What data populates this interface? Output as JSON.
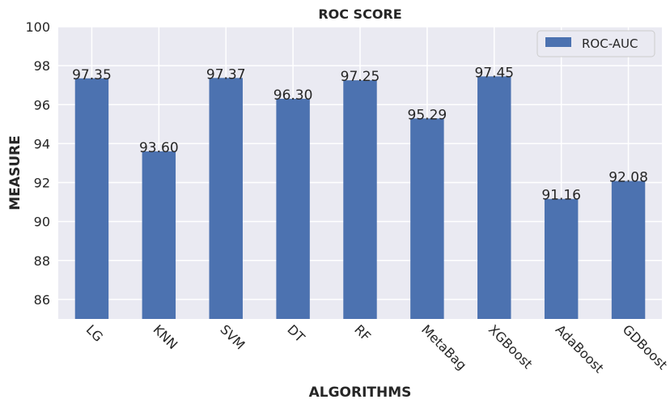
{
  "chart_data": {
    "type": "bar",
    "title": "ROC SCORE",
    "xlabel": "ALGORITHMS",
    "ylabel": "MEASURE",
    "categories": [
      "LG",
      "KNN",
      "SVM",
      "DT",
      "RF",
      "MetaBag",
      "XGBoost",
      "AdaBoost",
      "GDBoost"
    ],
    "series": [
      {
        "name": "ROC-AUC",
        "values": [
          97.35,
          93.6,
          97.37,
          96.3,
          97.25,
          95.29,
          97.45,
          91.16,
          92.08
        ],
        "value_labels": [
          "97.35",
          "93.60",
          "97.37",
          "96.30",
          "97.25",
          "95.29",
          "97.45",
          "91.16",
          "92.08"
        ],
        "color": "#4c72b0"
      }
    ],
    "ylim": [
      85,
      100
    ],
    "yticks": [
      86,
      88,
      90,
      92,
      94,
      96,
      98,
      100
    ],
    "grid": true,
    "legend_position": "top-right",
    "background_color": "#eaeaf2",
    "x_tick_rotation": -45
  }
}
